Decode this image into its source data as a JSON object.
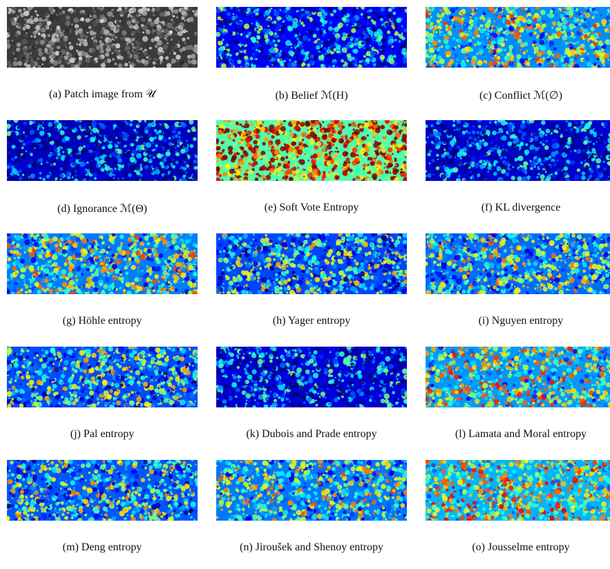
{
  "figure": {
    "panels": [
      {
        "id": "a",
        "caption": "(a)  Patch image from 𝒰",
        "palette": "gray"
      },
      {
        "id": "b",
        "caption": "(b)  Belief ℳ(H)",
        "palette": "jet",
        "level": 0.22
      },
      {
        "id": "c",
        "caption": "(c)  Conflict ℳ(∅)",
        "palette": "jet",
        "level": 0.48
      },
      {
        "id": "d",
        "caption": "(d)  Ignorance ℳ(Θ)",
        "palette": "jet",
        "level": 0.12
      },
      {
        "id": "e",
        "caption": "(e)  Soft Vote Entropy",
        "palette": "jet",
        "level": 0.82
      },
      {
        "id": "f",
        "caption": "(f)  KL divergence",
        "palette": "jet",
        "level": 0.14
      },
      {
        "id": "g",
        "caption": "(g)  Höhle entropy",
        "palette": "jet",
        "level": 0.45
      },
      {
        "id": "h",
        "caption": "(h)  Yager entropy",
        "palette": "jet",
        "level": 0.35
      },
      {
        "id": "i",
        "caption": "(i)  Nguyen entropy",
        "palette": "jet",
        "level": 0.42
      },
      {
        "id": "j",
        "caption": "(j)  Pal entropy",
        "palette": "jet",
        "level": 0.36
      },
      {
        "id": "k",
        "caption": "(k)  Dubois and Prade entropy",
        "palette": "jet",
        "level": 0.16
      },
      {
        "id": "l",
        "caption": "(l)  Lamata and Moral entropy",
        "palette": "jet",
        "level": 0.5
      },
      {
        "id": "m",
        "caption": "(m)  Deng entropy",
        "palette": "jet",
        "level": 0.38
      },
      {
        "id": "n",
        "caption": "(n)  Jiroušek and Shenoy entropy",
        "palette": "jet",
        "level": 0.44
      },
      {
        "id": "o",
        "caption": "(o)  Jousselme entropy",
        "palette": "jet",
        "level": 0.55
      }
    ]
  }
}
